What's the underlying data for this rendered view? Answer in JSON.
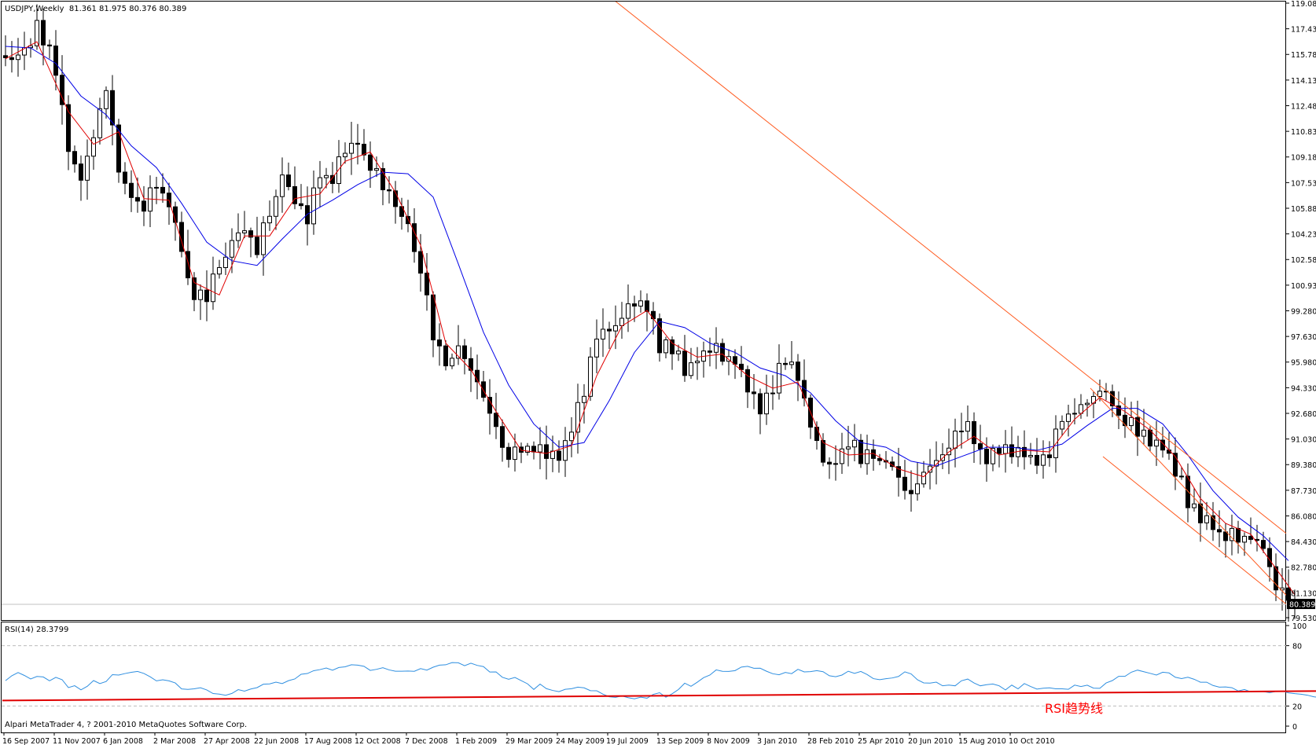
{
  "colors": {
    "background": "#ffffff",
    "frame": "#000000",
    "bull_candle": "#ffffff",
    "bear_candle": "#000000",
    "ma_fast": "#e00000",
    "ma_slow": "#0000e6",
    "trend_line": "#ff5a1f",
    "rsi_line": "#2f8fe0",
    "rsi_trend": "#e00000",
    "rsi_annotation": "#ff0000",
    "price_badge_bg": "#000000",
    "price_badge_fg": "#ffffff"
  },
  "chart_data": {
    "type": "candlestick",
    "symbol": "USDJPY",
    "timeframe": "Weekly",
    "ohlc_readout": [
      "81.361",
      "81.975",
      "80.376",
      "80.389"
    ],
    "header_text": "USDJPY,Weekly  81.361 81.975 80.376 80.389",
    "last_price": 80.389,
    "last_price_label": "80.389",
    "price_axis": {
      "ylim": [
        79.53,
        119.08
      ],
      "ticks": [
        119.08,
        117.43,
        115.78,
        114.13,
        112.48,
        110.83,
        109.18,
        107.53,
        105.88,
        104.23,
        102.58,
        100.93,
        99.28,
        97.63,
        95.98,
        94.33,
        92.68,
        91.03,
        89.38,
        87.73,
        86.08,
        84.43,
        82.78,
        81.13,
        79.53
      ],
      "tick_labels": [
        "119.080",
        "117.430",
        "115.780",
        "114.130",
        "112.480",
        "110.830",
        "109.180",
        "107.530",
        "105.880",
        "104.230",
        "102.580",
        "100.930",
        "99.280",
        "97.630",
        "95.980",
        "94.330",
        "92.680",
        "91.030",
        "89.380",
        "87.730",
        "86.080",
        "84.430",
        "82.780",
        "81.130",
        "79.530"
      ]
    },
    "x_axis": {
      "date_labels": [
        "16 Sep 2007",
        "11 Nov 2007",
        "6 Jan 2008",
        "2 Mar 2008",
        "27 Apr 2008",
        "22 Jun 2008",
        "17 Aug 2008",
        "12 Oct 2008",
        "7 Dec 2008",
        "1 Feb 2009",
        "29 Mar 2009",
        "24 May 2009",
        "19 Jul 2009",
        "13 Sep 2009",
        "8 Nov 2009",
        "3 Jan 2010",
        "28 Feb 2010",
        "25 Apr 2010",
        "20 Jun 2010",
        "15 Aug 2010",
        "10 Oct 2010"
      ],
      "bars_per_label": 8
    },
    "close_path": [
      [
        0,
        115.3
      ],
      [
        3,
        116.0
      ],
      [
        5,
        117.6
      ],
      [
        8,
        115.0
      ],
      [
        10,
        109.6
      ],
      [
        12,
        107.8
      ],
      [
        14,
        110.2
      ],
      [
        16,
        114.0
      ],
      [
        18,
        108.4
      ],
      [
        20,
        106.6
      ],
      [
        22,
        106.2
      ],
      [
        24,
        107.8
      ],
      [
        26,
        106.0
      ],
      [
        28,
        102.9
      ],
      [
        30,
        100.3
      ],
      [
        32,
        100.4
      ],
      [
        34,
        101.8
      ],
      [
        36,
        104.2
      ],
      [
        38,
        104.5
      ],
      [
        40,
        103.2
      ],
      [
        42,
        105.6
      ],
      [
        44,
        107.8
      ],
      [
        46,
        106.0
      ],
      [
        48,
        105.4
      ],
      [
        50,
        107.8
      ],
      [
        52,
        108.0
      ],
      [
        54,
        109.8
      ],
      [
        56,
        110.3
      ],
      [
        58,
        108.5
      ],
      [
        60,
        107.2
      ],
      [
        62,
        106.4
      ],
      [
        64,
        104.8
      ],
      [
        66,
        101.5
      ],
      [
        68,
        98.0
      ],
      [
        70,
        95.5
      ],
      [
        72,
        97.3
      ],
      [
        74,
        95.4
      ],
      [
        76,
        93.8
      ],
      [
        78,
        91.7
      ],
      [
        80,
        89.6
      ],
      [
        82,
        90.8
      ],
      [
        84,
        90.3
      ],
      [
        86,
        89.9
      ],
      [
        88,
        89.7
      ],
      [
        90,
        91.8
      ],
      [
        92,
        93.9
      ],
      [
        94,
        97.5
      ],
      [
        96,
        97.9
      ],
      [
        98,
        99.1
      ],
      [
        100,
        100.1
      ],
      [
        102,
        99.5
      ],
      [
        104,
        97.1
      ],
      [
        106,
        96.6
      ],
      [
        108,
        95.7
      ],
      [
        110,
        96.5
      ],
      [
        112,
        97.2
      ],
      [
        114,
        96.3
      ],
      [
        116,
        95.8
      ],
      [
        118,
        94.6
      ],
      [
        120,
        93.1
      ],
      [
        122,
        94.5
      ],
      [
        124,
        96.2
      ],
      [
        126,
        94.6
      ],
      [
        128,
        91.7
      ],
      [
        130,
        89.7
      ],
      [
        132,
        89.6
      ],
      [
        134,
        90.8
      ],
      [
        136,
        89.9
      ],
      [
        138,
        90.0
      ],
      [
        140,
        89.6
      ],
      [
        142,
        88.3
      ],
      [
        144,
        87.6
      ],
      [
        146,
        89.2
      ],
      [
        148,
        89.6
      ],
      [
        150,
        90.4
      ],
      [
        152,
        92.0
      ],
      [
        154,
        91.1
      ],
      [
        156,
        89.9
      ],
      [
        158,
        90.0
      ],
      [
        160,
        90.4
      ],
      [
        162,
        90.1
      ],
      [
        164,
        89.7
      ],
      [
        166,
        90.4
      ],
      [
        168,
        92.4
      ],
      [
        170,
        93.2
      ],
      [
        172,
        93.2
      ],
      [
        174,
        94.2
      ],
      [
        176,
        93.0
      ],
      [
        178,
        92.3
      ],
      [
        180,
        91.5
      ],
      [
        182,
        91.2
      ],
      [
        184,
        90.7
      ],
      [
        186,
        89.1
      ],
      [
        188,
        87.0
      ],
      [
        190,
        86.0
      ],
      [
        192,
        85.5
      ],
      [
        194,
        85.1
      ],
      [
        196,
        84.3
      ],
      [
        198,
        85.0
      ],
      [
        200,
        84.0
      ],
      [
        202,
        81.5
      ],
      [
        204,
        80.8
      ],
      [
        205,
        80.389
      ]
    ],
    "ma_fast_path": [
      [
        0,
        115.5
      ],
      [
        5,
        116.6
      ],
      [
        10,
        112.1
      ],
      [
        14,
        110.0
      ],
      [
        18,
        110.8
      ],
      [
        22,
        106.5
      ],
      [
        26,
        106.4
      ],
      [
        30,
        101.1
      ],
      [
        34,
        100.3
      ],
      [
        38,
        104.1
      ],
      [
        42,
        104.1
      ],
      [
        46,
        106.5
      ],
      [
        50,
        106.8
      ],
      [
        54,
        108.9
      ],
      [
        58,
        109.5
      ],
      [
        62,
        106.9
      ],
      [
        66,
        103.5
      ],
      [
        70,
        97.2
      ],
      [
        74,
        95.5
      ],
      [
        78,
        92.8
      ],
      [
        82,
        90.3
      ],
      [
        86,
        90.1
      ],
      [
        90,
        90.6
      ],
      [
        94,
        95.1
      ],
      [
        98,
        98.3
      ],
      [
        102,
        99.3
      ],
      [
        106,
        97.2
      ],
      [
        110,
        96.3
      ],
      [
        114,
        96.5
      ],
      [
        118,
        95.1
      ],
      [
        122,
        94.3
      ],
      [
        126,
        94.7
      ],
      [
        130,
        90.8
      ],
      [
        134,
        90.0
      ],
      [
        138,
        90.1
      ],
      [
        142,
        89.1
      ],
      [
        146,
        88.6
      ],
      [
        150,
        90.2
      ],
      [
        154,
        91.2
      ],
      [
        158,
        90.0
      ],
      [
        162,
        90.3
      ],
      [
        166,
        90.2
      ],
      [
        170,
        92.3
      ],
      [
        174,
        93.7
      ],
      [
        178,
        92.8
      ],
      [
        182,
        91.6
      ],
      [
        186,
        89.9
      ],
      [
        190,
        87.2
      ],
      [
        194,
        85.6
      ],
      [
        198,
        84.9
      ],
      [
        202,
        82.7
      ],
      [
        205,
        81.0
      ]
    ],
    "ma_slow_path": [
      [
        0,
        116.3
      ],
      [
        4,
        116.2
      ],
      [
        8,
        115.2
      ],
      [
        12,
        113.1
      ],
      [
        16,
        111.9
      ],
      [
        20,
        109.9
      ],
      [
        24,
        108.5
      ],
      [
        28,
        106.2
      ],
      [
        32,
        103.7
      ],
      [
        36,
        102.5
      ],
      [
        40,
        102.2
      ],
      [
        44,
        103.9
      ],
      [
        48,
        105.5
      ],
      [
        52,
        106.4
      ],
      [
        56,
        107.4
      ],
      [
        60,
        108.2
      ],
      [
        64,
        108.1
      ],
      [
        68,
        106.6
      ],
      [
        72,
        102.3
      ],
      [
        76,
        97.9
      ],
      [
        80,
        94.5
      ],
      [
        84,
        92.0
      ],
      [
        88,
        90.5
      ],
      [
        92,
        90.8
      ],
      [
        96,
        93.5
      ],
      [
        100,
        96.6
      ],
      [
        104,
        98.6
      ],
      [
        108,
        98.2
      ],
      [
        112,
        97.2
      ],
      [
        116,
        96.6
      ],
      [
        120,
        95.6
      ],
      [
        124,
        95.1
      ],
      [
        128,
        94.0
      ],
      [
        132,
        92.2
      ],
      [
        136,
        90.8
      ],
      [
        140,
        90.5
      ],
      [
        144,
        89.6
      ],
      [
        148,
        89.3
      ],
      [
        152,
        89.9
      ],
      [
        156,
        90.5
      ],
      [
        160,
        90.5
      ],
      [
        164,
        90.3
      ],
      [
        168,
        90.7
      ],
      [
        172,
        91.9
      ],
      [
        176,
        93.0
      ],
      [
        180,
        93.0
      ],
      [
        184,
        92.0
      ],
      [
        188,
        90.0
      ],
      [
        192,
        87.7
      ],
      [
        196,
        86.0
      ],
      [
        200,
        84.8
      ],
      [
        204,
        83.2
      ]
    ],
    "trend_lines": [
      {
        "from": [
          94.5,
          120.0
        ],
        "to": [
          222.5,
          78.9
        ]
      },
      {
        "from": [
          172.5,
          94.3
        ],
        "to": [
          208.5,
          78.9
        ]
      },
      {
        "from": [
          174.5,
          89.9
        ],
        "to": [
          205.5,
          79.8
        ]
      }
    ],
    "rsi": {
      "label": "RSI(14) 28.3799",
      "ylim": [
        0,
        100
      ],
      "levels": [
        20,
        80
      ],
      "tick_labels": [
        "100",
        "80",
        "20",
        "0"
      ],
      "tick_values": [
        100,
        80,
        20,
        0
      ],
      "values": [
        45.2,
        50.1,
        53.3,
        50.4,
        46.9,
        49.4,
        48.9,
        45.1,
        48.5,
        46.2,
        38.3,
        40.2,
        36.1,
        39.6,
        45.3,
        42.3,
        44.4,
        51.2,
        50.8,
        52.3,
        53.5,
        54.4,
        52.4,
        49.1,
        45.0,
        46.1,
        45.0,
        42.9,
        37.0,
        36.5,
        37.1,
        38.2,
        36.0,
        32.4,
        31.8,
        30.7,
        32.5,
        36.3,
        34.8,
        36.9,
        38.3,
        41.7,
        42.0,
        43.7,
        42.3,
        45.2,
        46.9,
        51.6,
        52.3,
        55.1,
        56.2,
        57.8,
        55.6,
        58.3,
        59.0,
        61.0,
        60.6,
        59.5,
        55.4,
        56.5,
        58.1,
        55.9,
        54.6,
        54.6,
        54.8,
        54.5,
        57.2,
        55.7,
        58.6,
        60.6,
        61.0,
        63.2,
        63.0,
        60.1,
        62.6,
        60.4,
        59.2,
        53.8,
        53.9,
        48.6,
        46.6,
        48.4,
        45.3,
        42.1,
        36.5,
        41.8,
        37.3,
        35.5,
        34.3,
        36.6,
        37.2,
        38.8,
        38.1,
        35.3,
        35.2,
        31.8,
        29.2,
        28.6,
        30.1,
        28.3,
        27.2,
        28.8,
        27.8,
        31.6,
        33.2,
        28.8,
        32.2,
        36.4,
        42.7,
        39.6,
        43.7,
        48.2,
        50.8,
        55.9,
        54.5,
        54.4,
        55.2,
        58.7,
        59.5,
        57.5,
        57.6,
        54.6,
        52.1,
        51.1,
        53.4,
        52.2,
        56.5,
        53.9,
        54.2,
        55.2,
        54.1,
        50.1,
        49.1,
        50.8,
        54.6,
        52.5,
        54.4,
        51.3,
        47.2,
        46.2,
        47.2,
        47.9,
        49.4,
        54.0,
        51.9,
        46.1,
        43.0,
        42.8,
        43.7,
        40.1,
        40.8,
        40.1,
        45.1,
        46.8,
        42.9,
        40.1,
        41.2,
        41.9,
        40.1,
        36.0,
        40.8,
        37.1,
        42.3,
        39.4,
        36.8,
        37.7,
        38.1,
        37.1,
        37.1,
        36.6,
        40.8,
        39.4,
        40.7,
        37.8,
        37.6,
        42.9,
        45.3,
        49.5,
        49.5,
        53.6,
        55.7,
        54.1,
        52.5,
        50.8,
        53.6,
        52.9,
        48.6,
        47.3,
        48.6,
        46.6,
        43.7,
        43.7,
        40.4,
        38.8,
        39.0,
        38.2,
        35.0,
        36.4,
        34.1,
        34.5,
        34.4,
        33.3,
        34.5,
        34.9,
        33.1,
        32.3,
        31.7,
        30.8,
        29.2,
        28.4
      ],
      "trend": {
        "from": [
          -0.5,
          25.5
        ],
        "to": [
          222.5,
          35.5
        ]
      },
      "annotation": "RSI趋势线"
    }
  },
  "footer": {
    "copyright": "Alpari MetaTrader 4, ? 2001-2010 MetaQuotes Software Corp."
  }
}
